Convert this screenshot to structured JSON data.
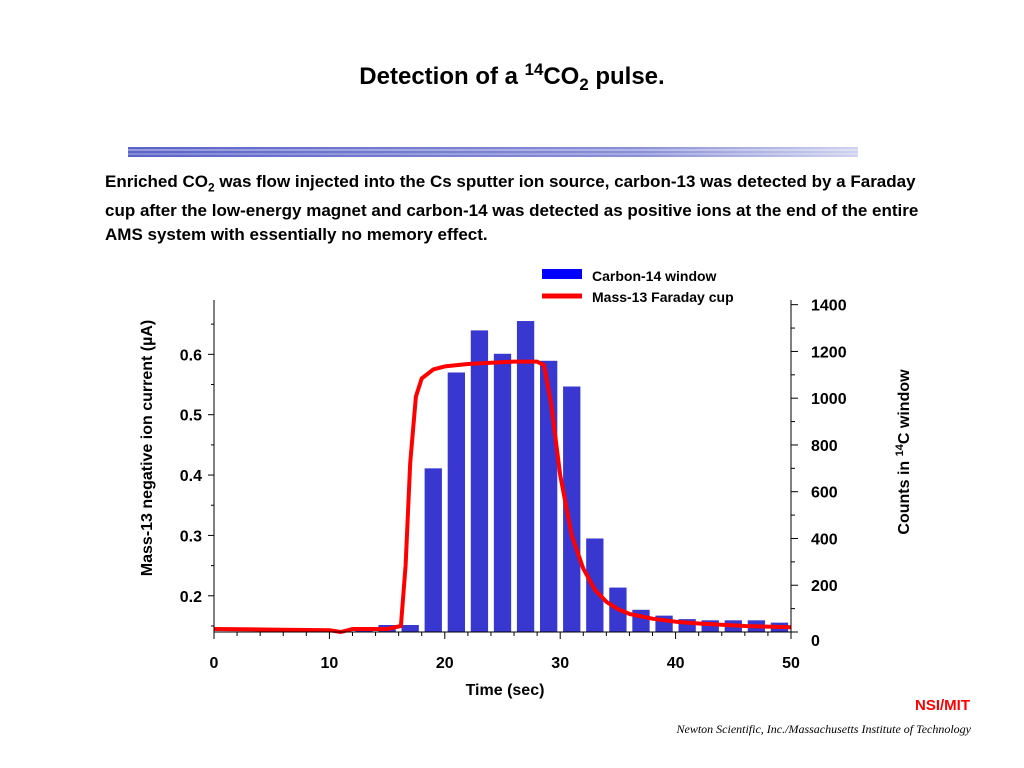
{
  "slide": {
    "title_pre": "Detection of a ",
    "title_sup": "14",
    "title_mid": "CO",
    "title_sub": "2",
    "title_post": " pulse.",
    "desc_pre": "Enriched CO",
    "desc_sub": "2",
    "desc_post": " was flow injected into the Cs sputter ion source, carbon-13 was detected by a Faraday cup after the low-energy magnet and carbon-14 was detected as positive ions at the end of the entire AMS system with essentially no memory effect.",
    "org": "NSI/MIT",
    "credit": "Newton Scientific, Inc./Massachusetts Institute of Technology"
  },
  "chart_data": {
    "type": "bar",
    "xlabel": "Time (sec)",
    "ylabel_left": "Mass-13 negative ion current (µA)",
    "ylabel_right_pre": "Counts in ",
    "ylabel_right_sup": "14",
    "ylabel_right_post": "C window",
    "xlim": [
      0,
      50
    ],
    "ylim_left": [
      0.14,
      0.69
    ],
    "ylim_right": [
      0,
      1420
    ],
    "x_ticks": [
      0,
      10,
      20,
      30,
      40,
      50
    ],
    "y_left_ticks": [
      0.2,
      0.3,
      0.4,
      0.5,
      0.6
    ],
    "y_right_ticks": [
      0,
      200,
      400,
      600,
      800,
      1000,
      1200,
      1400
    ],
    "legend": {
      "position": "top-right",
      "bar_label": "Carbon-14 window",
      "line_label": "Mass-13 Faraday cup"
    },
    "colors": {
      "bars": "#3838d0",
      "line": "#ff0000",
      "legend_bar": "#0000ff"
    },
    "bars": {
      "name": "Carbon-14 window",
      "axis": "right",
      "x": [
        11,
        13,
        15,
        17,
        19,
        21,
        23,
        25,
        27,
        29,
        31,
        33,
        35,
        37,
        39,
        41,
        43,
        45,
        47,
        49
      ],
      "values": [
        5,
        15,
        30,
        30,
        700,
        1110,
        1290,
        1190,
        1330,
        1160,
        1050,
        400,
        190,
        95,
        70,
        55,
        50,
        50,
        50,
        40
      ]
    },
    "line": {
      "name": "Mass-13 Faraday cup",
      "axis": "left",
      "x": [
        0,
        5,
        10,
        11,
        12,
        15,
        16.2,
        16.6,
        17,
        17.5,
        18,
        19,
        20,
        22,
        24,
        26,
        28,
        28.6,
        29.2,
        30,
        31,
        32,
        33,
        34,
        35,
        36,
        38,
        40,
        42,
        44,
        46,
        48,
        50
      ],
      "y": [
        0.145,
        0.144,
        0.143,
        0.14,
        0.145,
        0.145,
        0.15,
        0.25,
        0.42,
        0.53,
        0.56,
        0.575,
        0.58,
        0.584,
        0.586,
        0.588,
        0.588,
        0.582,
        0.52,
        0.4,
        0.3,
        0.245,
        0.21,
        0.19,
        0.178,
        0.17,
        0.162,
        0.157,
        0.154,
        0.152,
        0.15,
        0.149,
        0.148
      ]
    }
  }
}
